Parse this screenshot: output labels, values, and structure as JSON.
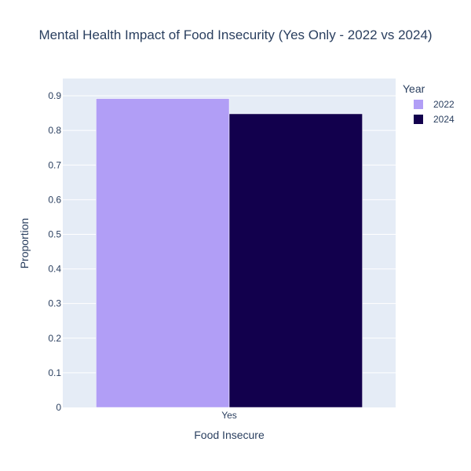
{
  "chart_data": {
    "type": "bar",
    "title": "Mental Health Impact of Food Insecurity (Yes Only - 2022 vs 2024)",
    "xlabel": "Food Insecure",
    "ylabel": "Proportion",
    "categories": [
      "Yes"
    ],
    "series": [
      {
        "name": "2022",
        "values": [
          0.892
        ],
        "color": "#b19ef6"
      },
      {
        "name": "2024",
        "values": [
          0.848
        ],
        "color": "#12004d"
      }
    ],
    "ylim": [
      0,
      0.95
    ],
    "yticks": [
      0,
      0.1,
      0.2,
      0.3,
      0.4,
      0.5,
      0.6,
      0.7,
      0.8,
      0.9
    ],
    "ytick_labels": [
      "0",
      "0.1",
      "0.2",
      "0.3",
      "0.4",
      "0.5",
      "0.6",
      "0.7",
      "0.8",
      "0.9"
    ],
    "grid": true,
    "legend": {
      "title": "Year",
      "position": "top-right"
    },
    "plot_background": "#e5ecf6"
  }
}
